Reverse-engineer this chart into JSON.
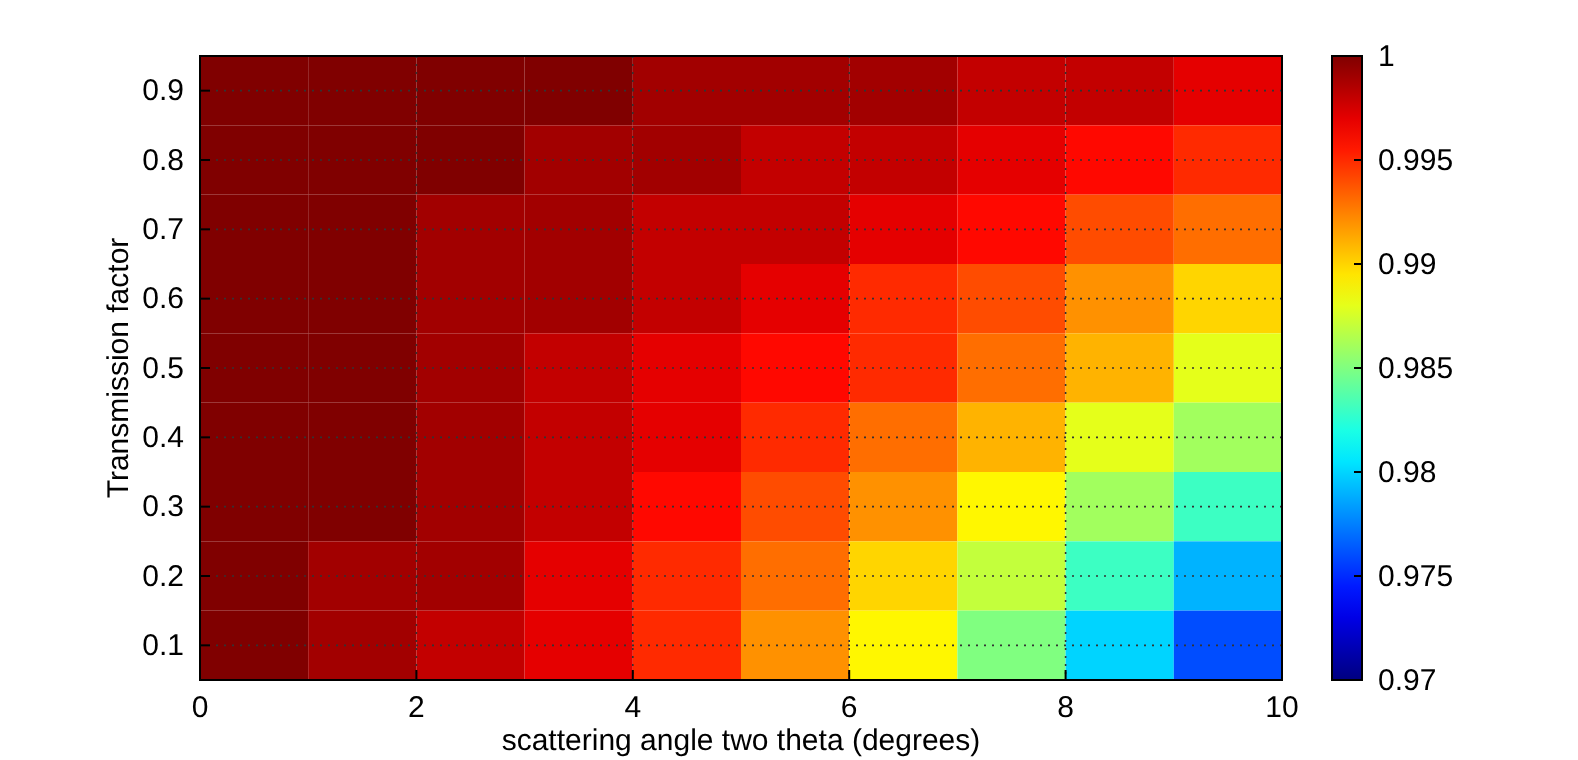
{
  "chart_data": {
    "type": "heatmap",
    "xlabel": "scattering angle two theta (degrees)",
    "ylabel": "Transmission factor",
    "x": [
      0.5,
      1.5,
      2.5,
      3.5,
      4.5,
      5.5,
      6.5,
      7.5,
      8.5,
      9.5
    ],
    "y_categories": [
      "0.9",
      "0.8",
      "0.7",
      "0.6",
      "0.5",
      "0.4",
      "0.3",
      "0.2",
      "0.1"
    ],
    "xlim": [
      0,
      10
    ],
    "xticks": [
      0,
      2,
      4,
      6,
      8,
      10
    ],
    "cells": [
      [
        1,
        1,
        1,
        1,
        0.999,
        0.999,
        0.999,
        0.998,
        0.998,
        0.997
      ],
      [
        1,
        1,
        1,
        0.999,
        0.999,
        0.998,
        0.998,
        0.997,
        0.996,
        0.995
      ],
      [
        1,
        1,
        0.999,
        0.999,
        0.998,
        0.998,
        0.997,
        0.996,
        0.994,
        0.993
      ],
      [
        1,
        1,
        0.999,
        0.999,
        0.998,
        0.997,
        0.995,
        0.994,
        0.992,
        0.99
      ],
      [
        1,
        1,
        0.999,
        0.998,
        0.997,
        0.996,
        0.995,
        0.993,
        0.991,
        0.988
      ],
      [
        1,
        1,
        0.999,
        0.998,
        0.997,
        0.995,
        0.993,
        0.991,
        0.988,
        0.986
      ],
      [
        1,
        1,
        0.999,
        0.998,
        0.996,
        0.994,
        0.992,
        0.989,
        0.986,
        0.983
      ],
      [
        1,
        0.999,
        0.999,
        0.997,
        0.995,
        0.993,
        0.99,
        0.987,
        0.983,
        0.979
      ],
      [
        1,
        0.999,
        0.998,
        0.997,
        0.995,
        0.992,
        0.989,
        0.985,
        0.98,
        0.976
      ]
    ],
    "clim": [
      0.97,
      1
    ],
    "cticks": [
      0.97,
      0.975,
      0.98,
      0.985,
      0.99,
      0.995,
      1
    ],
    "grid": true
  }
}
